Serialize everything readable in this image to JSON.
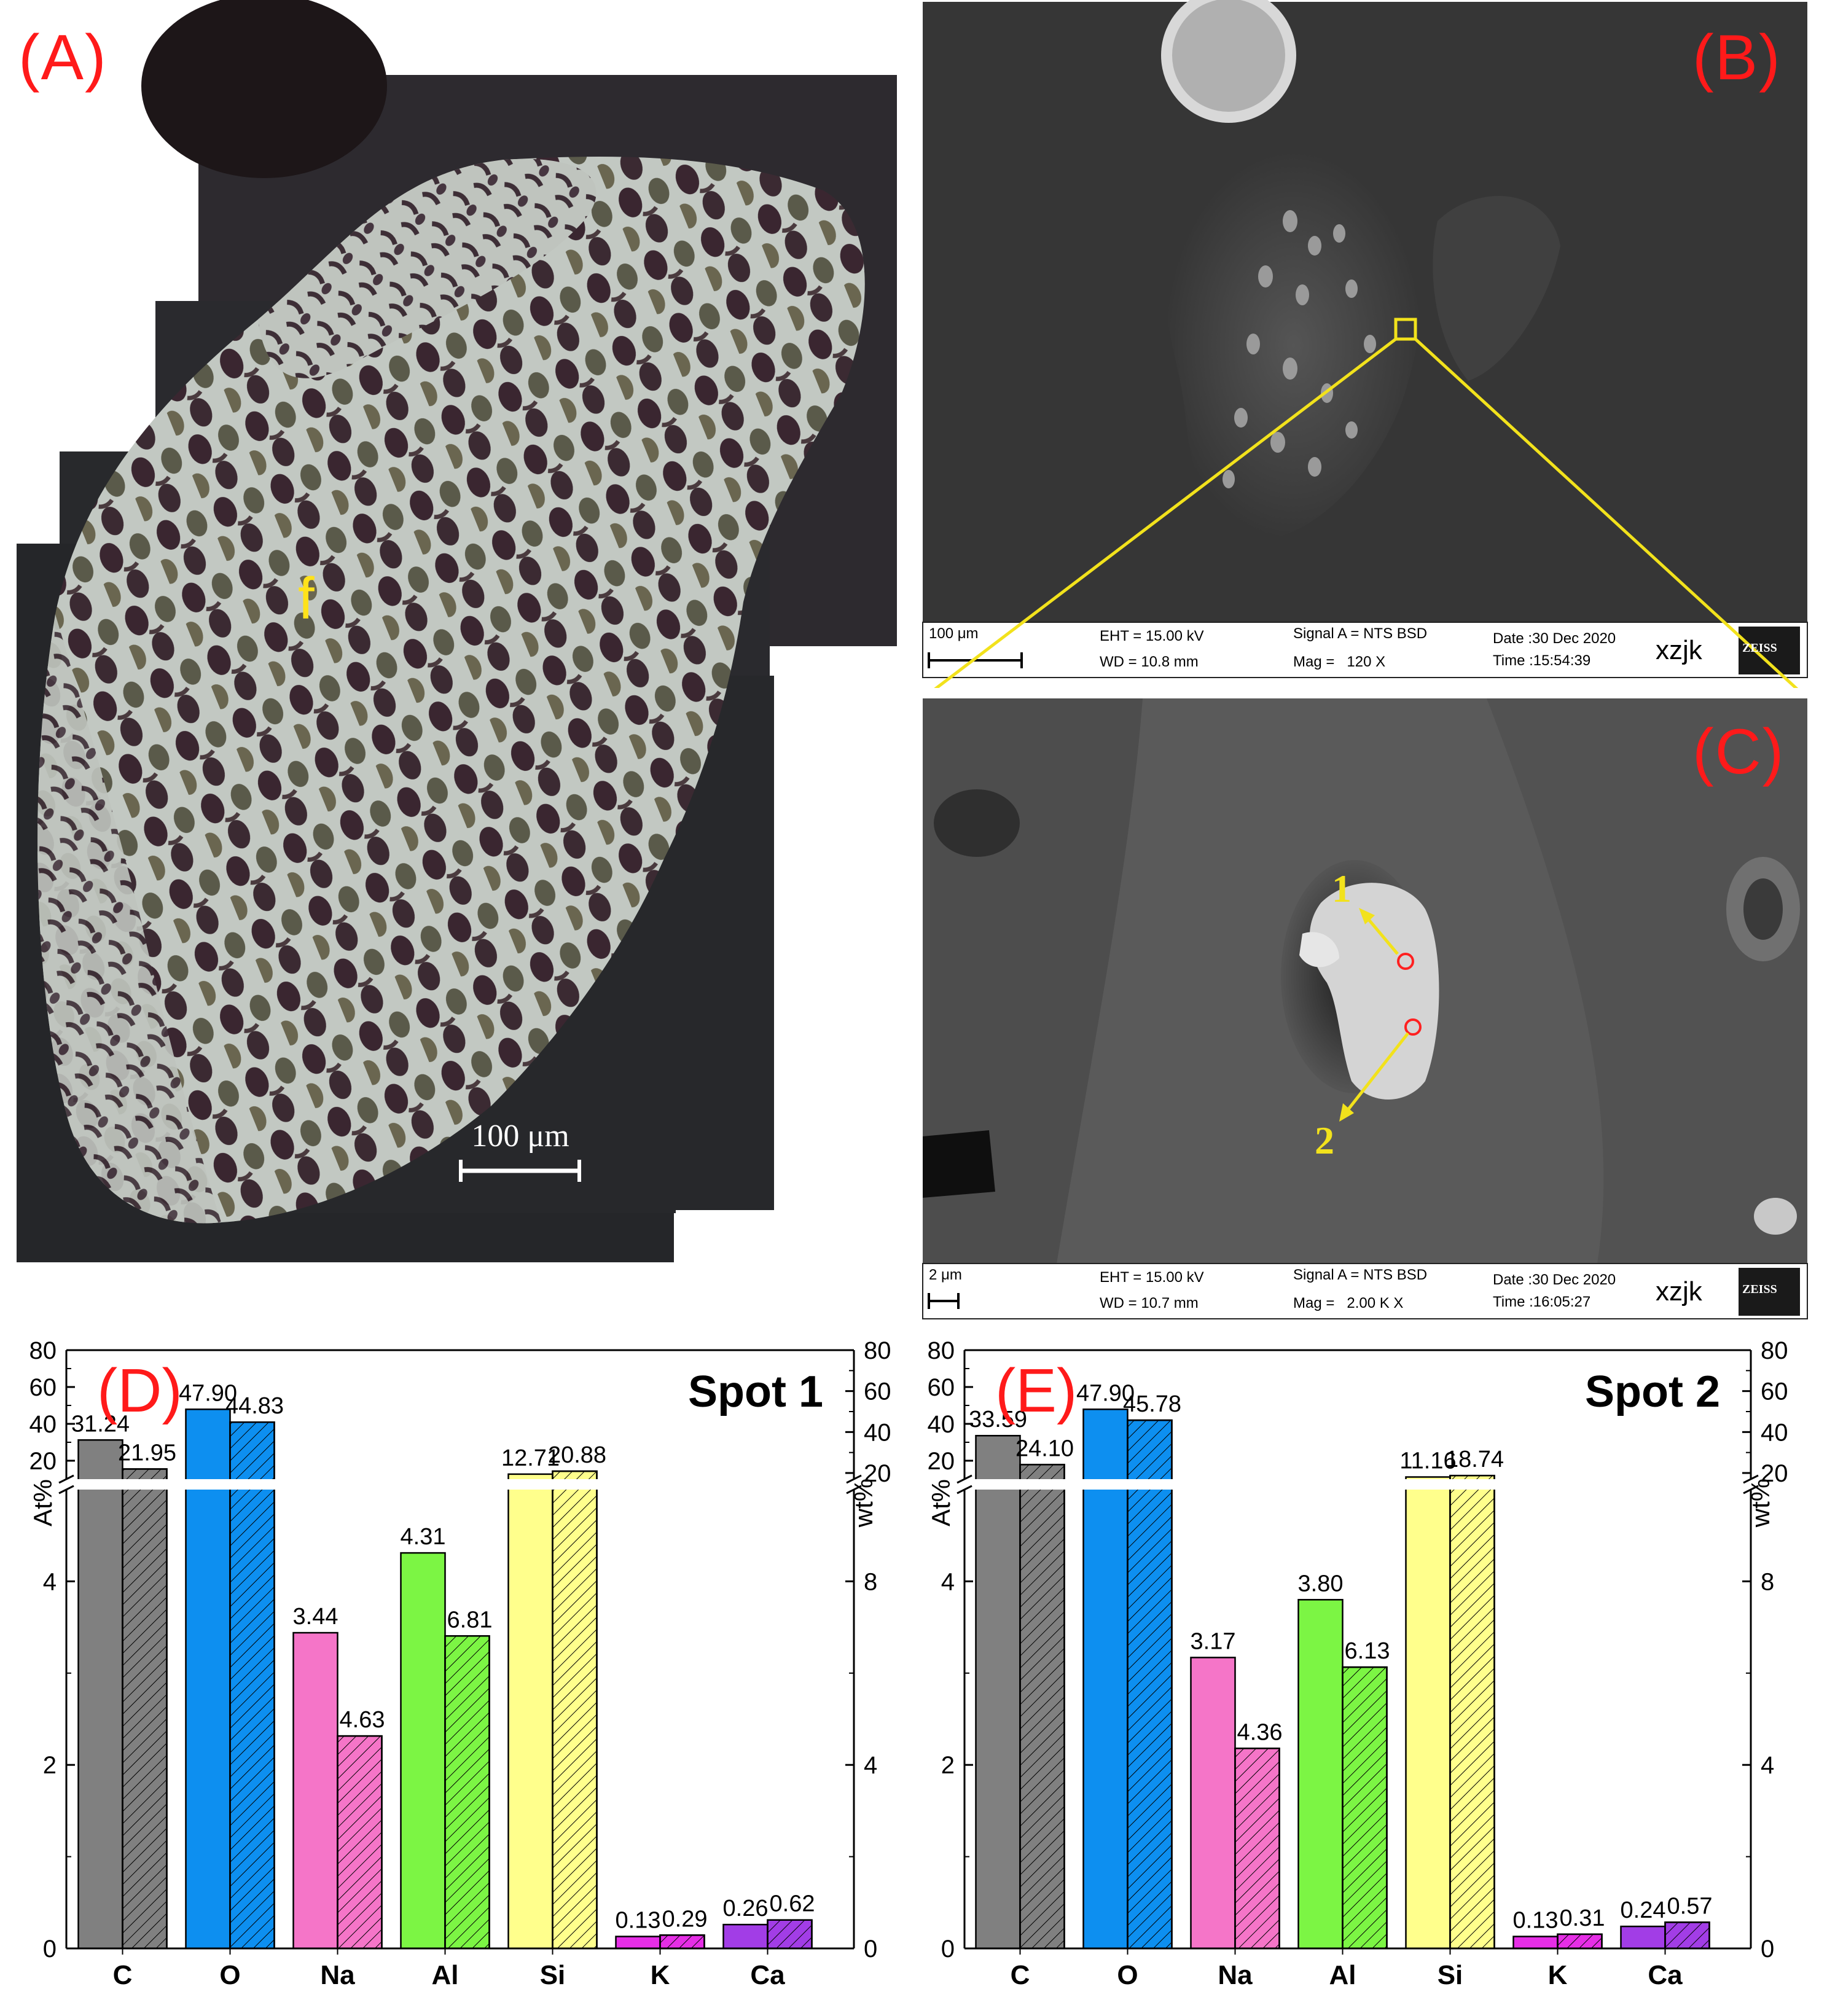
{
  "panels": {
    "a": {
      "label": "(A)",
      "region_mark": "f",
      "scalebar": "100 μm"
    },
    "b": {
      "label": "(B)",
      "info": {
        "scalebar": "100 μm",
        "eht": "EHT = 15.00 kV",
        "wd": "WD = 10.8 mm",
        "signal": "Signal A = NTS BSD",
        "mag": "Mag =   120 X",
        "date": "Date :30 Dec 2020",
        "time": "Time :15:54:39",
        "user": "xzjk",
        "logo": "ZEISS"
      }
    },
    "c": {
      "label": "(C)",
      "spot1": "1",
      "spot2": "2",
      "info": {
        "scalebar": "2 μm",
        "eht": "EHT = 15.00 kV",
        "wd": "WD = 10.7 mm",
        "signal": "Signal A = NTS BSD",
        "mag": "Mag =   2.00 K X",
        "date": "Date :30 Dec 2020",
        "time": "Time :16:05:27",
        "user": "xzjk",
        "logo": "ZEISS"
      }
    }
  },
  "chart_data": [
    {
      "type": "bar",
      "panel_label": "(D)",
      "title": "Spot 1",
      "categories": [
        "C",
        "O",
        "Na",
        "Al",
        "Si",
        "K",
        "Ca"
      ],
      "colors": [
        "#808080",
        "#0d8ff0",
        "#f575c8",
        "#7cf544",
        "#ffff8c",
        "#e62ee6",
        "#a23de6"
      ],
      "series": [
        {
          "name": "At%",
          "axis": "left",
          "values": [
            31.24,
            47.9,
            3.44,
            4.31,
            12.71,
            0.13,
            0.26
          ],
          "labels": [
            "31.24",
            "47.90",
            "3.44",
            "4.31",
            "12.71",
            "0.13",
            "0.26"
          ]
        },
        {
          "name": "wt%",
          "axis": "right",
          "values": [
            21.95,
            44.83,
            4.63,
            6.81,
            20.88,
            0.29,
            0.62
          ],
          "labels": [
            "21.95",
            "44.83",
            "4.63",
            "6.81",
            "20.88",
            "0.29",
            "0.62"
          ]
        }
      ],
      "ylabel_left": "At%",
      "ylabel_right": "wt%",
      "left_axis": {
        "lower_range": [
          0,
          5
        ],
        "lower_ticks": [
          "0",
          "2",
          "4"
        ],
        "upper_range": [
          10,
          80
        ],
        "upper_ticks": [
          "20",
          "40",
          "60",
          "80"
        ],
        "break": true
      },
      "right_axis": {
        "lower_range": [
          0,
          10
        ],
        "lower_ticks": [
          "0",
          "4",
          "8"
        ],
        "upper_range": [
          17,
          80
        ],
        "upper_ticks": [
          "20",
          "40",
          "60",
          "80"
        ],
        "break": true
      }
    },
    {
      "type": "bar",
      "panel_label": "(E)",
      "title": "Spot 2",
      "categories": [
        "C",
        "O",
        "Na",
        "Al",
        "Si",
        "K",
        "Ca"
      ],
      "colors": [
        "#808080",
        "#0d8ff0",
        "#f575c8",
        "#7cf544",
        "#ffff8c",
        "#e62ee6",
        "#a23de6"
      ],
      "series": [
        {
          "name": "At%",
          "axis": "left",
          "values": [
            33.59,
            47.9,
            3.17,
            3.8,
            11.16,
            0.13,
            0.24
          ],
          "labels": [
            "33.59",
            "47.90",
            "3.17",
            "3.80",
            "11.16",
            "0.13",
            "0.24"
          ]
        },
        {
          "name": "wt%",
          "axis": "right",
          "values": [
            24.1,
            45.78,
            4.36,
            6.13,
            18.74,
            0.31,
            0.57
          ],
          "labels": [
            "24.10",
            "45.78",
            "4.36",
            "6.13",
            "18.74",
            "0.31",
            "0.57"
          ]
        }
      ],
      "ylabel_left": "At%",
      "ylabel_right": "wt%",
      "left_axis": {
        "lower_range": [
          0,
          5
        ],
        "lower_ticks": [
          "0",
          "2",
          "4"
        ],
        "upper_range": [
          10,
          80
        ],
        "upper_ticks": [
          "20",
          "40",
          "60",
          "80"
        ],
        "break": true
      },
      "right_axis": {
        "lower_range": [
          0,
          10
        ],
        "lower_ticks": [
          "0",
          "4",
          "8"
        ],
        "upper_range": [
          17,
          80
        ],
        "upper_ticks": [
          "20",
          "40",
          "60",
          "80"
        ],
        "break": true
      }
    }
  ]
}
